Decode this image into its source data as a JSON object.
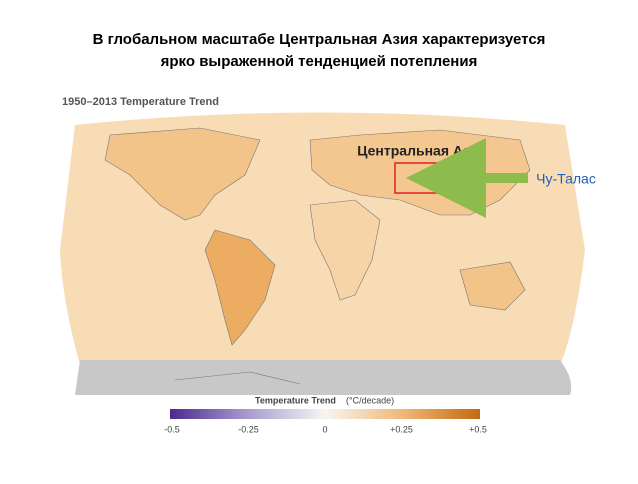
{
  "header": {
    "lines": [
      "В глобальном масштабе Центральная Азия характеризуется",
      "ярко выраженной тенденцией потепления"
    ]
  },
  "map": {
    "title": "1950–2013 Temperature Trend",
    "region_label": "Центральная Азия",
    "site_label": "Чу-Талас"
  },
  "legend": {
    "title": "Temperature Trend",
    "unit": "(°C/decade)",
    "ticks": [
      "-0.5",
      "-0.25",
      "0",
      "+0.25",
      "+0.5"
    ]
  }
}
